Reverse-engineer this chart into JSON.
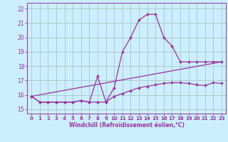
{
  "xlabel": "Windchill (Refroidissement éolien,°C)",
  "bg_color": "#cceeff",
  "grid_color": "#aacccc",
  "line_color": "#993399",
  "ylim": [
    14.7,
    22.4
  ],
  "xlim": [
    -0.5,
    23.5
  ],
  "yticks": [
    15,
    16,
    17,
    18,
    19,
    20,
    21,
    22
  ],
  "xticks": [
    0,
    1,
    2,
    3,
    4,
    5,
    6,
    7,
    8,
    9,
    10,
    11,
    12,
    13,
    14,
    15,
    16,
    17,
    18,
    19,
    20,
    21,
    22,
    23
  ],
  "line1_x": [
    0,
    1,
    2,
    3,
    4,
    5,
    6,
    7,
    8,
    9,
    10,
    11,
    12,
    13,
    14,
    15,
    16,
    17,
    18,
    19,
    20,
    21,
    22,
    23
  ],
  "line1_y": [
    15.9,
    15.5,
    15.5,
    15.5,
    15.5,
    15.5,
    15.6,
    15.5,
    17.3,
    15.5,
    16.5,
    19.0,
    20.0,
    21.2,
    21.6,
    21.6,
    20.0,
    19.4,
    18.3,
    18.3,
    18.3,
    18.3,
    18.3,
    18.3
  ],
  "line2_x": [
    0,
    1,
    2,
    3,
    4,
    5,
    6,
    7,
    8,
    9,
    10,
    11,
    12,
    13,
    14,
    15,
    16,
    17,
    18,
    19,
    20,
    21,
    22,
    23
  ],
  "line2_y": [
    15.9,
    15.5,
    15.5,
    15.5,
    15.5,
    15.5,
    15.6,
    15.5,
    15.5,
    15.5,
    15.9,
    16.1,
    16.3,
    16.5,
    16.6,
    16.7,
    16.8,
    16.85,
    16.85,
    16.8,
    16.7,
    16.65,
    16.85,
    16.8
  ],
  "line3_x": [
    0,
    23
  ],
  "line3_y": [
    15.9,
    18.3
  ]
}
